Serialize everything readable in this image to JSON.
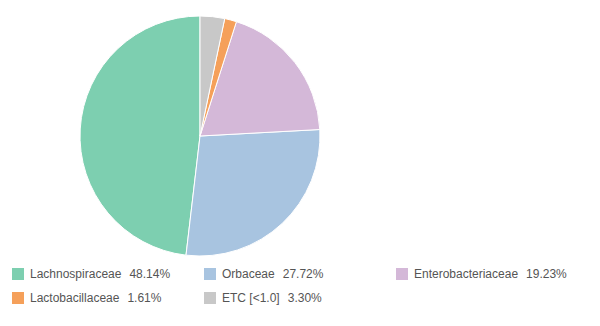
{
  "chart_data": {
    "type": "pie",
    "categories": [
      "Lachnospiraceae",
      "Orbaceae",
      "Enterobacteriaceae",
      "Lactobacillaceae",
      "ETC [<1.0]"
    ],
    "values": [
      48.14,
      27.72,
      19.23,
      1.61,
      3.3
    ],
    "value_labels": [
      "48.14%",
      "27.72%",
      "19.23%",
      "1.61%",
      "3.30%"
    ],
    "colors": [
      "#7dcfb0",
      "#a8c4e0",
      "#d4b8d8",
      "#f5a05a",
      "#c8c8c8"
    ],
    "legend": "bottom"
  }
}
